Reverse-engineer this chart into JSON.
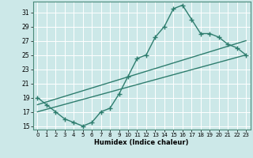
{
  "xlabel": "Humidex (Indice chaleur)",
  "ylabel": "",
  "bg_color": "#cce8e8",
  "grid_color": "#ffffff",
  "line_color": "#2e7d6e",
  "xlim": [
    -0.5,
    23.5
  ],
  "ylim": [
    14.5,
    32.5
  ],
  "yticks": [
    15,
    17,
    19,
    21,
    23,
    25,
    27,
    29,
    31
  ],
  "xticks": [
    0,
    1,
    2,
    3,
    4,
    5,
    6,
    7,
    8,
    9,
    10,
    11,
    12,
    13,
    14,
    15,
    16,
    17,
    18,
    19,
    20,
    21,
    22,
    23
  ],
  "line1_x": [
    0,
    1,
    2,
    3,
    4,
    5,
    6,
    7,
    8,
    9,
    10,
    11,
    12,
    13,
    14,
    15,
    16,
    17,
    18,
    19,
    20,
    21,
    22,
    23
  ],
  "line1_y": [
    19,
    18,
    17,
    16,
    15.5,
    15,
    15.5,
    17,
    17.5,
    19.5,
    22,
    24.5,
    25,
    27.5,
    29,
    31.5,
    32,
    30,
    28,
    28,
    27.5,
    26.5,
    26,
    25
  ],
  "line2_x": [
    0,
    23
  ],
  "line2_y": [
    18,
    27
  ],
  "line3_x": [
    0,
    23
  ],
  "line3_y": [
    17,
    25
  ],
  "marker": "+",
  "markersize": 4,
  "linewidth": 1.0
}
